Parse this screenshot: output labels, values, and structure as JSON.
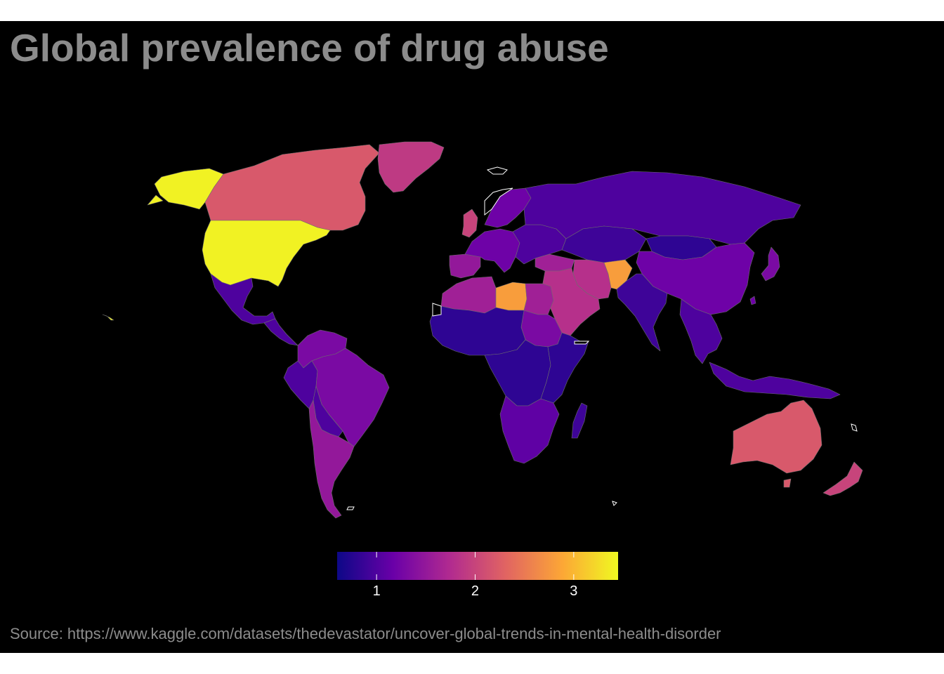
{
  "title": "Global prevalence of drug abuse",
  "caption": "Source: https://www.kaggle.com/datasets/thedevastator/uncover-global-trends-in-mental-health-disorder",
  "legend": {
    "min": 0.6,
    "max": 3.45,
    "ticks": [
      {
        "value": 1,
        "label": "1"
      },
      {
        "value": 2,
        "label": "2"
      },
      {
        "value": 3,
        "label": "3"
      }
    ],
    "palette": [
      "#0d0887",
      "#6a00a8",
      "#b12a90",
      "#e16462",
      "#fca636",
      "#f0f921"
    ]
  },
  "countries": [
    {
      "name": "Alaska",
      "value": 3.4
    },
    {
      "name": "Canada",
      "value": 2.2
    },
    {
      "name": "United States",
      "value": 3.4
    },
    {
      "name": "Greenland",
      "value": 1.9
    },
    {
      "name": "Mexico",
      "value": 1.0
    },
    {
      "name": "Central America",
      "value": 1.0
    },
    {
      "name": "Colombia / Venezuela",
      "value": 1.3
    },
    {
      "name": "Peru",
      "value": 1.0
    },
    {
      "name": "Brazil",
      "value": 1.3
    },
    {
      "name": "Bolivia / Paraguay",
      "value": 1.0
    },
    {
      "name": "Argentina / Chile",
      "value": 1.5
    },
    {
      "name": "United Kingdom",
      "value": 2.0
    },
    {
      "name": "Iberia",
      "value": 1.5
    },
    {
      "name": "Western Europe",
      "value": 1.2
    },
    {
      "name": "Scandinavia",
      "value": 1.2
    },
    {
      "name": "Eastern Europe",
      "value": 1.0
    },
    {
      "name": "Russia",
      "value": 1.0
    },
    {
      "name": "Kazakhstan",
      "value": 0.9
    },
    {
      "name": "Mongolia",
      "value": 0.8
    },
    {
      "name": "China",
      "value": 1.2
    },
    {
      "name": "Japan",
      "value": 1.3
    },
    {
      "name": "Turkey",
      "value": 1.6
    },
    {
      "name": "Iran",
      "value": 1.8
    },
    {
      "name": "Afghanistan",
      "value": 2.8
    },
    {
      "name": "Arabian Peninsula",
      "value": 1.8
    },
    {
      "name": "India",
      "value": 0.9
    },
    {
      "name": "Southeast Asia",
      "value": 1.0
    },
    {
      "name": "Indonesia",
      "value": 1.0
    },
    {
      "name": "Maghreb",
      "value": 1.6
    },
    {
      "name": "Libya",
      "value": 2.8
    },
    {
      "name": "Egypt",
      "value": 1.6
    },
    {
      "name": "Sudan",
      "value": 1.3
    },
    {
      "name": "West Africa",
      "value": 0.8
    },
    {
      "name": "Central Africa",
      "value": 0.8
    },
    {
      "name": "East Africa",
      "value": 0.8
    },
    {
      "name": "Southern Africa",
      "value": 1.1
    },
    {
      "name": "Madagascar",
      "value": 0.9
    },
    {
      "name": "Australia",
      "value": 2.2
    },
    {
      "name": "New Zealand",
      "value": 2.0
    }
  ]
}
